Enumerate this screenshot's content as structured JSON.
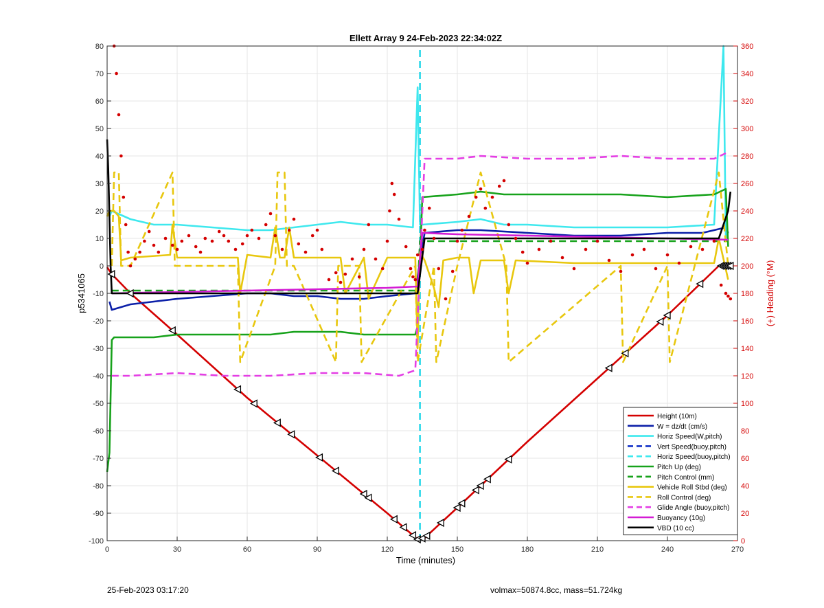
{
  "chart_data": {
    "type": "line",
    "title": "Ellett Array 9 24-Feb-2023 22:34:02Z",
    "xlabel": "Time (minutes)",
    "ylabel": "p5341065",
    "ylabel_right": "(+) Heading (°M)",
    "xlim": [
      0,
      270
    ],
    "ylim": [
      -100,
      80
    ],
    "ylim_right": [
      0,
      360
    ],
    "x_ticks": [
      0,
      30,
      60,
      90,
      120,
      150,
      180,
      210,
      240,
      270
    ],
    "y_ticks": [
      -100,
      -90,
      -80,
      -70,
      -60,
      -50,
      -40,
      -30,
      -20,
      -10,
      0,
      10,
      20,
      30,
      40,
      50,
      60,
      70,
      80
    ],
    "y_right_ticks": [
      0,
      20,
      40,
      60,
      80,
      100,
      120,
      140,
      160,
      180,
      200,
      220,
      240,
      260,
      280,
      300,
      320,
      340,
      360
    ],
    "grid": true,
    "legend_position": "bottom-right",
    "series": [
      {
        "name": "Height (10m)",
        "color": "#d40000",
        "style": "solid",
        "x": [
          0,
          2,
          10,
          30,
          60,
          90,
          120,
          133,
          136,
          150,
          180,
          210,
          240,
          262,
          267
        ],
        "y": [
          -0.5,
          -3,
          -10,
          -25,
          -48,
          -69,
          -90,
          -99.5,
          -99,
          -88,
          -64,
          -41,
          -18,
          0,
          0
        ]
      },
      {
        "name": "W = dz/dt (cm/s)",
        "color": "#0b1fa8",
        "style": "solid",
        "x": [
          1,
          2,
          10,
          20,
          30,
          45,
          60,
          70,
          80,
          90,
          100,
          110,
          120,
          132,
          134,
          136,
          150,
          160,
          180,
          200,
          220,
          240,
          255,
          265,
          266
        ],
        "y": [
          -13,
          -16,
          -14,
          -13,
          -12,
          -11,
          -10,
          -10,
          -11,
          -11,
          -12,
          -12,
          -11,
          -10,
          2,
          12,
          13,
          13,
          12,
          11,
          11,
          12,
          12,
          14,
          12
        ]
      },
      {
        "name": "Horiz Speed(W,pitch)",
        "color": "#3ee8ee",
        "style": "solid",
        "x": [
          1,
          2,
          10,
          20,
          30,
          45,
          60,
          70,
          80,
          90,
          100,
          110,
          120,
          131,
          133,
          134,
          135,
          150,
          160,
          170,
          180,
          200,
          220,
          240,
          260,
          264,
          265,
          266
        ],
        "y": [
          18,
          20,
          17,
          15,
          15,
          14,
          13,
          13,
          14,
          15,
          16,
          15,
          15,
          14,
          65,
          15,
          15,
          16,
          17,
          15,
          15,
          14,
          14,
          14,
          15,
          80,
          10,
          12
        ]
      },
      {
        "name": "Vert Speed(buoy,pitch)",
        "color": "#1230c8",
        "style": "dashed",
        "x": [
          134,
          134
        ],
        "y": [
          -100,
          80
        ]
      },
      {
        "name": "Horiz Speed(buoy,pitch)",
        "color": "#3ee8ee",
        "style": "dashed",
        "x": [
          134,
          134
        ],
        "y": [
          -100,
          80
        ]
      },
      {
        "name": "Pitch Up (deg)",
        "color": "#17a21b",
        "style": "solid",
        "x": [
          0,
          1,
          2,
          3,
          10,
          20,
          30,
          40,
          50,
          60,
          70,
          80,
          90,
          100,
          110,
          120,
          132,
          133,
          135,
          150,
          160,
          170,
          180,
          200,
          220,
          240,
          260,
          265,
          266
        ],
        "y": [
          -75,
          -68,
          -27,
          -26,
          -26,
          -26,
          -25,
          -25,
          -25,
          -25,
          -25,
          -24,
          -24,
          -24,
          -25,
          -25,
          -25,
          -22,
          25,
          26,
          27,
          26,
          26,
          26,
          26,
          25,
          26,
          28,
          7
        ]
      },
      {
        "name": "Pitch Control (mm)",
        "color": "#17a21b",
        "style": "dashed",
        "x": [
          2,
          133,
          134,
          266
        ],
        "y": [
          -9,
          -9,
          9,
          9
        ]
      },
      {
        "name": "Vehicle Roll Stbd (deg)",
        "color": "#e8c70e",
        "style": "solid",
        "x": [
          0,
          1,
          3,
          5,
          6,
          10,
          27,
          28,
          30,
          56,
          57,
          60,
          70,
          72,
          74,
          76,
          78,
          80,
          100,
          102,
          110,
          112,
          120,
          132,
          133,
          134,
          136,
          140,
          142,
          144,
          150,
          155,
          157,
          160,
          170,
          172,
          175,
          200,
          220,
          240,
          260,
          262,
          266
        ],
        "y": [
          18,
          20,
          20,
          18,
          2,
          3,
          4,
          15,
          3,
          3,
          -10,
          4,
          3,
          14,
          3,
          3,
          14,
          3,
          3,
          -10,
          3,
          -12,
          3,
          3,
          -30,
          5,
          2,
          -8,
          -15,
          2,
          3,
          3,
          -10,
          2,
          2,
          -10,
          2,
          1,
          1,
          1,
          1,
          10,
          -5
        ]
      },
      {
        "name": "Roll Control (deg)",
        "color": "#e8c70e",
        "style": "dashed",
        "x": [
          2,
          3,
          5,
          6,
          10,
          28,
          29,
          56,
          57,
          72,
          73,
          76,
          77,
          80,
          98,
          99,
          108,
          109,
          132,
          133,
          140,
          141,
          150,
          160,
          171,
          172,
          220,
          221,
          240,
          241,
          262,
          266
        ],
        "y": [
          0,
          34,
          34,
          0,
          0,
          34,
          0,
          0,
          -35,
          0,
          34,
          34,
          0,
          0,
          -35,
          0,
          0,
          -35,
          0,
          -35,
          0,
          -35,
          0,
          34,
          0,
          -35,
          0,
          -35,
          0,
          -35,
          34,
          0
        ]
      },
      {
        "name": "Glide Angle (buoy,pitch)",
        "color": "#e43ee4",
        "style": "dashed",
        "x": [
          2,
          10,
          30,
          50,
          70,
          90,
          110,
          125,
          132,
          134,
          136,
          150,
          160,
          180,
          200,
          220,
          240,
          260,
          265
        ],
        "y": [
          -40,
          -40,
          -39,
          -40,
          -40,
          -39,
          -39,
          -40,
          -38,
          0,
          39,
          39,
          40,
          39,
          39,
          40,
          39,
          39,
          41
        ]
      },
      {
        "name": "Buoyancy (10g)",
        "color": "#d41cd4",
        "style": "solid",
        "x": [
          2,
          30,
          60,
          90,
          120,
          133,
          135,
          150,
          180,
          210,
          240,
          266
        ],
        "y": [
          -10,
          -9.5,
          -9,
          -8.5,
          -8,
          -7.5,
          12,
          11.5,
          11,
          10.5,
          10,
          9.5
        ]
      },
      {
        "name": "VBD (10 cc)",
        "color": "#000000",
        "style": "solid",
        "x": [
          0,
          0.5,
          1.5,
          2,
          30,
          60,
          90,
          120,
          133,
          136,
          150,
          180,
          210,
          240,
          262,
          266,
          267
        ],
        "y": [
          46,
          35,
          0,
          -10,
          -10,
          -10,
          -10,
          -10,
          -10,
          10,
          10,
          10,
          10,
          10,
          10,
          20,
          27
        ]
      }
    ],
    "heading_series": {
      "name": "Heading",
      "color": "#d40000",
      "style": "dotted",
      "axis": "right",
      "x": [
        3,
        4,
        5,
        6,
        7,
        8,
        9,
        10,
        12,
        14,
        16,
        18,
        20,
        22,
        25,
        28,
        30,
        32,
        35,
        38,
        40,
        42,
        45,
        48,
        50,
        52,
        55,
        58,
        60,
        62,
        65,
        68,
        70,
        72,
        75,
        78,
        80,
        82,
        85,
        88,
        90,
        92,
        95,
        98,
        100,
        102,
        105,
        108,
        110,
        112,
        115,
        118,
        120,
        121,
        122,
        123,
        125,
        128,
        130,
        131,
        132,
        133,
        135,
        136,
        138,
        140,
        142,
        145,
        148,
        150,
        152,
        155,
        158,
        160,
        162,
        165,
        168,
        170,
        172,
        175,
        178,
        180,
        185,
        190,
        195,
        200,
        205,
        210,
        215,
        220,
        225,
        230,
        235,
        240,
        245,
        250,
        255,
        260,
        263,
        265,
        266,
        267
      ],
      "y": [
        360,
        340,
        310,
        280,
        250,
        230,
        210,
        200,
        205,
        210,
        218,
        225,
        215,
        210,
        220,
        215,
        212,
        218,
        222,
        214,
        210,
        220,
        218,
        225,
        222,
        218,
        212,
        216,
        222,
        226,
        220,
        230,
        238,
        222,
        212,
        226,
        234,
        216,
        210,
        222,
        226,
        212,
        190,
        195,
        188,
        194,
        205,
        192,
        212,
        230,
        205,
        198,
        218,
        240,
        260,
        252,
        234,
        214,
        198,
        192,
        190,
        208,
        212,
        226,
        242,
        220,
        198,
        176,
        196,
        218,
        226,
        236,
        250,
        256,
        242,
        250,
        258,
        262,
        230,
        220,
        210,
        202,
        212,
        218,
        206,
        198,
        212,
        218,
        204,
        196,
        208,
        212,
        198,
        208,
        202,
        214,
        212,
        218,
        186,
        180,
        178,
        176
      ]
    },
    "height_markers_x": [
      2,
      10,
      28,
      56,
      63,
      73,
      79,
      91,
      98,
      110,
      112,
      123,
      127,
      131,
      133,
      135,
      137,
      143,
      150,
      152,
      158,
      160,
      163,
      172,
      215,
      222,
      237,
      240,
      254,
      263,
      264,
      265,
      266,
      267
    ],
    "legend_entries": [
      "Height (10m)",
      "W = dz/dt (cm/s)",
      "Horiz Speed(W,pitch)",
      "Vert Speed(buoy,pitch)",
      "Horiz Speed(buoy,pitch)",
      "Pitch Up (deg)",
      "Pitch Control (mm)",
      "Vehicle Roll Stbd (deg)",
      "Roll Control (deg)",
      "Glide Angle (buoy,pitch)",
      "Buoyancy (10g)",
      "VBD (10 cc)"
    ]
  },
  "footer": {
    "left": "25-Feb-2023 03:17:20",
    "right": "volmax=50874.8cc, mass=51.724kg"
  }
}
